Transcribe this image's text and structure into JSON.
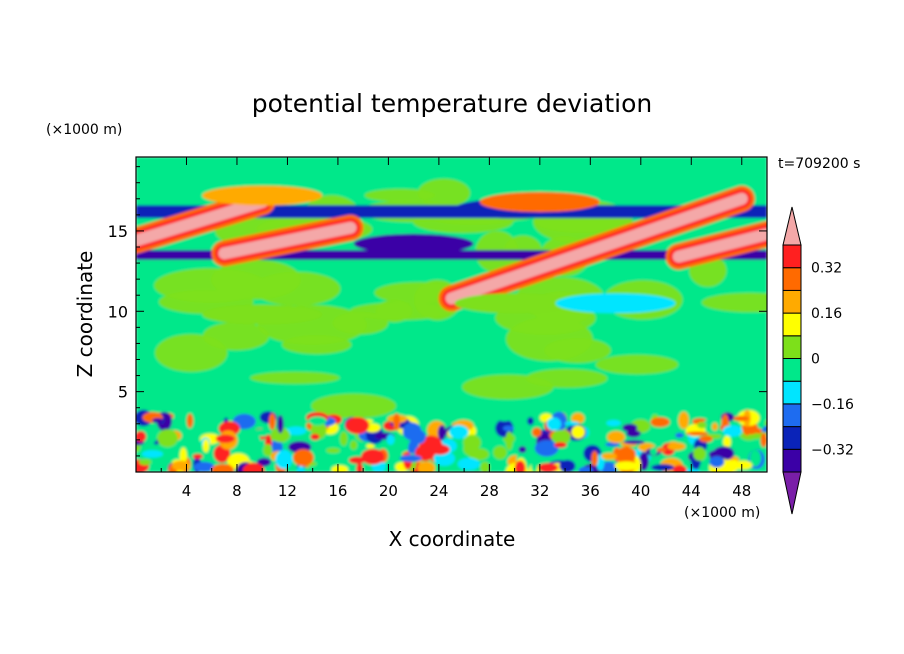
{
  "chart_data": {
    "type": "heatmap",
    "title": "potential temperature deviation",
    "xlabel": "X coordinate",
    "ylabel": "Z coordinate",
    "x_unit": "(×1000 m)",
    "y_unit": "(×1000 m)",
    "time_label": "t=709200 s",
    "xlim": [
      0,
      50
    ],
    "ylim": [
      0,
      19.6
    ],
    "x_ticks": [
      "4",
      "8",
      "12",
      "16",
      "20",
      "24",
      "28",
      "32",
      "36",
      "40",
      "44",
      "48"
    ],
    "y_ticks": [
      "5",
      "10",
      "15"
    ],
    "colorbar": {
      "levels": [
        -0.4,
        -0.32,
        -0.24,
        -0.16,
        -0.08,
        0,
        0.08,
        0.16,
        0.24,
        0.32,
        0.4
      ],
      "labels": [
        "0.32",
        "0.16",
        "0",
        "−0.16",
        "−0.32"
      ],
      "label_values": [
        0.32,
        0.16,
        0,
        -0.16,
        -0.32
      ],
      "colors": [
        "#7a1ea8",
        "#3b00a6",
        "#0a23b8",
        "#1e6cf0",
        "#00e5ff",
        "#00e88a",
        "#7de01a",
        "#ffff00",
        "#ffaa00",
        "#ff6a00",
        "#ff2020",
        "#f4a8a8"
      ]
    },
    "features": [
      {
        "kind": "band",
        "x0": 0,
        "x1": 50,
        "z0": 0,
        "z1": 3.6,
        "level": "mixed"
      },
      {
        "kind": "band",
        "x0": 0,
        "x1": 50,
        "z0": 13.2,
        "z1": 13.8,
        "value": -0.33
      },
      {
        "kind": "band",
        "x0": 0,
        "x1": 50,
        "z0": 15.8,
        "z1": 16.6,
        "value": -0.3
      },
      {
        "kind": "blob",
        "x": 22,
        "z": 14.2,
        "value": -0.38
      },
      {
        "kind": "blob",
        "x": 30,
        "z": 16.4,
        "value": -0.3
      },
      {
        "kind": "plume",
        "from": [
          25,
          10.8
        ],
        "to": [
          48,
          17.0
        ],
        "value": 0.42
      },
      {
        "kind": "plume",
        "from": [
          0,
          14.4
        ],
        "to": [
          10,
          16.8
        ],
        "value": 0.42
      },
      {
        "kind": "plume",
        "from": [
          7,
          13.6
        ],
        "to": [
          17,
          15.2
        ],
        "value": 0.42
      },
      {
        "kind": "plume",
        "from": [
          43,
          13.4
        ],
        "to": [
          50,
          14.8
        ],
        "value": 0.42
      },
      {
        "kind": "blob",
        "x": 32,
        "z": 16.8,
        "value": 0.28
      },
      {
        "kind": "blob",
        "x": 10,
        "z": 17.2,
        "value": 0.2
      },
      {
        "kind": "blob",
        "x": 10,
        "z": 9.8,
        "value": 0.04
      },
      {
        "kind": "blob",
        "x": 30,
        "z": 10.5,
        "value": 0.04
      },
      {
        "kind": "blob",
        "x": 38,
        "z": 10.5,
        "value": -0.13
      }
    ]
  }
}
